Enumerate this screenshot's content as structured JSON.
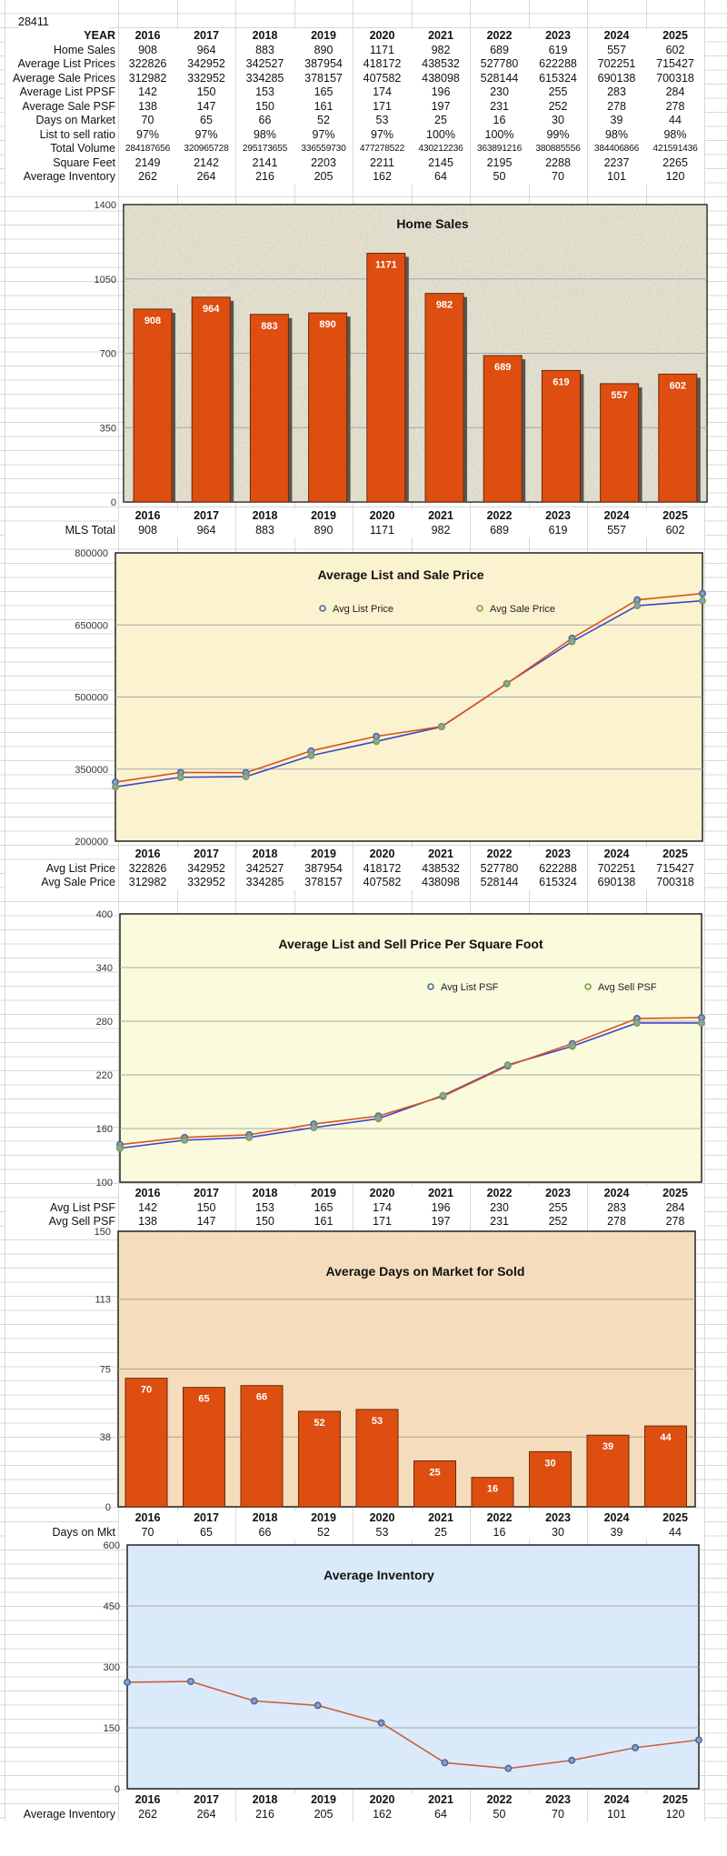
{
  "sheet": {
    "zip_code": "28411",
    "header_label": "YEAR",
    "years": [
      "2016",
      "2017",
      "2018",
      "2019",
      "2020",
      "2021",
      "2022",
      "2023",
      "2024",
      "2025"
    ],
    "rows": [
      {
        "label": "Home Sales",
        "values": [
          "908",
          "964",
          "883",
          "890",
          "1171",
          "982",
          "689",
          "619",
          "557",
          "602"
        ]
      },
      {
        "label": "Average List Prices",
        "values": [
          "322826",
          "342952",
          "342527",
          "387954",
          "418172",
          "438532",
          "527780",
          "622288",
          "702251",
          "715427"
        ]
      },
      {
        "label": "Average Sale Prices",
        "values": [
          "312982",
          "332952",
          "334285",
          "378157",
          "407582",
          "438098",
          "528144",
          "615324",
          "690138",
          "700318"
        ]
      },
      {
        "label": "Average List PPSF",
        "values": [
          "142",
          "150",
          "153",
          "165",
          "174",
          "196",
          "230",
          "255",
          "283",
          "284"
        ]
      },
      {
        "label": "Average Sale PSF",
        "values": [
          "138",
          "147",
          "150",
          "161",
          "171",
          "197",
          "231",
          "252",
          "278",
          "278"
        ]
      },
      {
        "label": "Days on Market",
        "values": [
          "70",
          "65",
          "66",
          "52",
          "53",
          "25",
          "16",
          "30",
          "39",
          "44"
        ]
      },
      {
        "label": "List to sell ratio",
        "values": [
          "97%",
          "97%",
          "98%",
          "97%",
          "97%",
          "100%",
          "100%",
          "99%",
          "98%",
          "98%"
        ]
      },
      {
        "label": "Total Volume",
        "values": [
          "284187656",
          "320965728",
          "295173655",
          "336559730",
          "477278522",
          "430212236",
          "363891216",
          "380885556",
          "384406866",
          "421591436"
        ]
      },
      {
        "label": "Square Feet",
        "values": [
          "2149",
          "2142",
          "2141",
          "2203",
          "2211",
          "2145",
          "2195",
          "2288",
          "2237",
          "2265"
        ]
      },
      {
        "label": "Average Inventory",
        "values": [
          "262",
          "264",
          "216",
          "205",
          "162",
          "64",
          "50",
          "70",
          "101",
          "120"
        ]
      }
    ]
  },
  "chart_data": [
    {
      "type": "bar",
      "title": "Home Sales",
      "ylim": [
        0,
        1400
      ],
      "yticks": [
        "0",
        "350",
        "700",
        "1050",
        "1400"
      ],
      "grid": true,
      "background": "#e8e5d4",
      "bar_color": "#dd4e10",
      "categories": [
        "2016",
        "2017",
        "2018",
        "2019",
        "2020",
        "2021",
        "2022",
        "2023",
        "2024",
        "2025"
      ],
      "values": [
        908,
        964,
        883,
        890,
        1171,
        982,
        689,
        619,
        557,
        602
      ],
      "data_labels": [
        "908",
        "964",
        "883",
        "890",
        "1171",
        "982",
        "689",
        "619",
        "557",
        "602"
      ],
      "table": [
        {
          "label": "MLS Total",
          "values": [
            "908",
            "964",
            "883",
            "890",
            "1171",
            "982",
            "689",
            "619",
            "557",
            "602"
          ]
        }
      ]
    },
    {
      "type": "line",
      "title": "Average List and Sale Price",
      "ylim": [
        200000,
        800000
      ],
      "yticks": [
        "200000",
        "350000",
        "500000",
        "650000",
        "800000"
      ],
      "grid": true,
      "background": "#fbf3cf",
      "legend": "top-center",
      "categories": [
        "2016",
        "2017",
        "2018",
        "2019",
        "2020",
        "2021",
        "2022",
        "2023",
        "2024",
        "2025"
      ],
      "series": [
        {
          "name": "Avg List Price",
          "line_color": "#d9531e",
          "marker_color": "#4a6aa0",
          "values": [
            322826,
            342952,
            342527,
            387954,
            418172,
            438532,
            527780,
            622288,
            702251,
            715427
          ]
        },
        {
          "name": "Avg Sale Price",
          "line_color": "#3b48c8",
          "marker_color": "#7aa04a",
          "values": [
            312982,
            332952,
            334285,
            378157,
            407582,
            438098,
            528144,
            615324,
            690138,
            700318
          ]
        }
      ],
      "table": [
        {
          "label": "Avg List Price",
          "values": [
            "322826",
            "342952",
            "342527",
            "387954",
            "418172",
            "438532",
            "527780",
            "622288",
            "702251",
            "715427"
          ]
        },
        {
          "label": "Avg Sale Price",
          "values": [
            "312982",
            "332952",
            "334285",
            "378157",
            "407582",
            "438098",
            "528144",
            "615324",
            "690138",
            "700318"
          ]
        }
      ]
    },
    {
      "type": "line",
      "title": "Average List and Sell Price Per Square Foot",
      "ylim": [
        100,
        400
      ],
      "yticks": [
        "100",
        "160",
        "220",
        "280",
        "340",
        "400"
      ],
      "grid": true,
      "background": "#fafadc",
      "legend": "top-right",
      "categories": [
        "2016",
        "2017",
        "2018",
        "2019",
        "2020",
        "2021",
        "2022",
        "2023",
        "2024",
        "2025"
      ],
      "series": [
        {
          "name": "Avg List PSF",
          "line_color": "#d9531e",
          "marker_color": "#4a6aa0",
          "values": [
            142,
            150,
            153,
            165,
            174,
            196,
            230,
            255,
            283,
            284
          ]
        },
        {
          "name": "Avg Sell PSF",
          "line_color": "#3b48c8",
          "marker_color": "#7aa04a",
          "values": [
            138,
            147,
            150,
            161,
            171,
            197,
            231,
            252,
            278,
            278
          ]
        }
      ],
      "table": [
        {
          "label": "Avg List PSF",
          "values": [
            "142",
            "150",
            "153",
            "165",
            "174",
            "196",
            "230",
            "255",
            "283",
            "284"
          ]
        },
        {
          "label": "Avg Sell PSF",
          "values": [
            "138",
            "147",
            "150",
            "161",
            "171",
            "197",
            "231",
            "252",
            "278",
            "278"
          ]
        }
      ]
    },
    {
      "type": "bar",
      "title": "Average Days on Market for Sold",
      "ylim": [
        0,
        150
      ],
      "yticks": [
        "0",
        "38",
        "75",
        "113",
        "150"
      ],
      "grid": true,
      "background": "#f5dcbc",
      "bar_color": "#dd4e10",
      "categories": [
        "2016",
        "2017",
        "2018",
        "2019",
        "2020",
        "2021",
        "2022",
        "2023",
        "2024",
        "2025"
      ],
      "values": [
        70,
        65,
        66,
        52,
        53,
        25,
        16,
        30,
        39,
        44
      ],
      "data_labels": [
        "70",
        "65",
        "66",
        "52",
        "53",
        "25",
        "16",
        "30",
        "39",
        "44"
      ],
      "table": [
        {
          "label": "Days on Mkt",
          "values": [
            "70",
            "65",
            "66",
            "52",
            "53",
            "25",
            "16",
            "30",
            "39",
            "44"
          ]
        }
      ]
    },
    {
      "type": "line",
      "title": "Average Inventory",
      "ylim": [
        0,
        600
      ],
      "yticks": [
        "0",
        "150",
        "300",
        "450",
        "600"
      ],
      "grid": true,
      "background": "#dbeafb",
      "categories": [
        "2016",
        "2017",
        "2018",
        "2019",
        "2020",
        "2021",
        "2022",
        "2023",
        "2024",
        "2025"
      ],
      "series": [
        {
          "line_color": "#c8603a",
          "marker_color": "#4a6aa0",
          "values": [
            262,
            264,
            216,
            205,
            162,
            64,
            50,
            70,
            101,
            120
          ]
        }
      ],
      "table": [
        {
          "label": "Average Inventory",
          "values": [
            "262",
            "264",
            "216",
            "205",
            "162",
            "64",
            "50",
            "70",
            "101",
            "120"
          ]
        }
      ]
    }
  ]
}
